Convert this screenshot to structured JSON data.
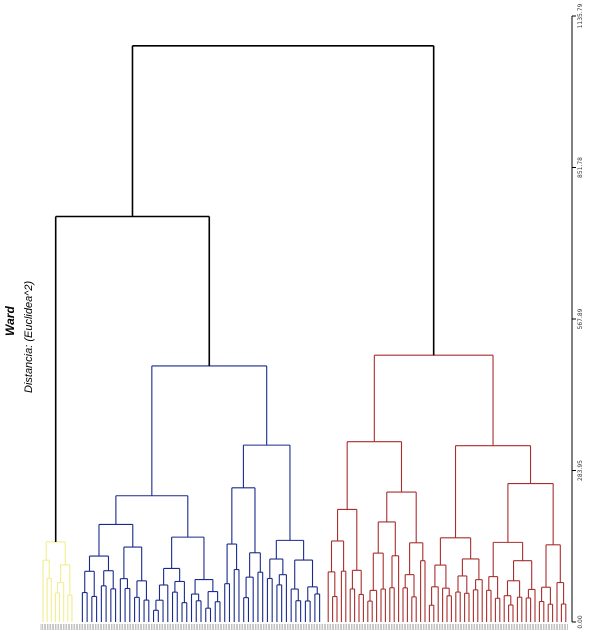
{
  "chart_data": {
    "type": "dendrogram",
    "title": "Ward",
    "subtitle": "Distancia: (Euclidea^2)",
    "y_axis": {
      "ylim": [
        0,
        1135.79
      ],
      "ticks": [
        "0.00",
        "283.95",
        "567.89",
        "851.78",
        "1135.79"
      ]
    },
    "clusters": [
      {
        "name": "yellow",
        "color": "#f2ee8c",
        "n_leaves": 8
      },
      {
        "name": "blue",
        "color": "#1a2a8c",
        "n_leaves": 51
      },
      {
        "name": "red",
        "color": "#a82e2e",
        "n_leaves": 55
      }
    ],
    "merges": {
      "root": 1080,
      "yellow_blue": 760,
      "blue_top": 480,
      "red_top": 500,
      "yellow_top": 150
    },
    "root_color": "#000000"
  }
}
